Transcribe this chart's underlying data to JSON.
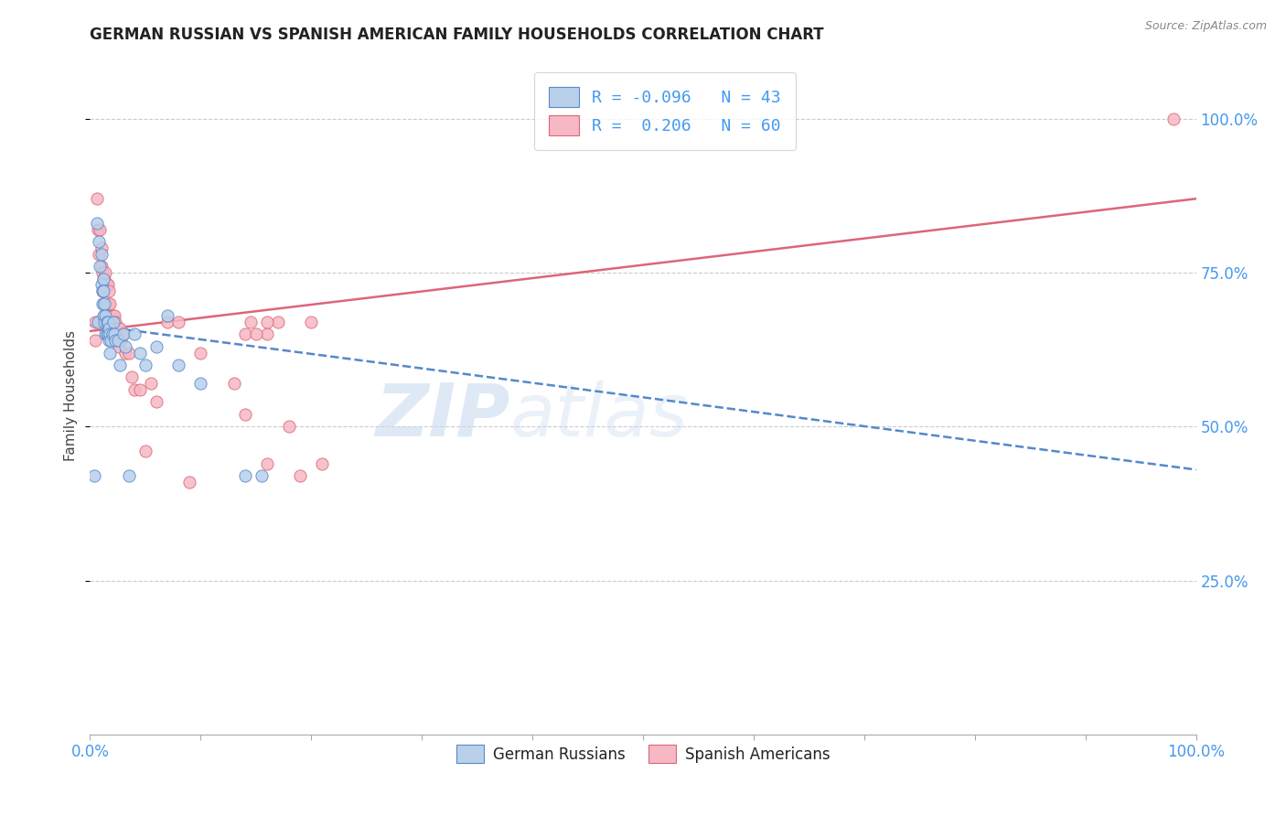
{
  "title": "GERMAN RUSSIAN VS SPANISH AMERICAN FAMILY HOUSEHOLDS CORRELATION CHART",
  "source": "Source: ZipAtlas.com",
  "ylabel": "Family Households",
  "watermark": "ZIPatlas",
  "legend_blue_R": "-0.096",
  "legend_blue_N": "43",
  "legend_pink_R": "0.206",
  "legend_pink_N": "60",
  "blue_color": "#b8d0ea",
  "pink_color": "#f5b8c4",
  "blue_line_color": "#5588cc",
  "pink_line_color": "#dd6677",
  "ytick_values": [
    0.25,
    0.5,
    0.75,
    1.0
  ],
  "ytick_labels": [
    "25.0%",
    "50.0%",
    "75.0%",
    "100.0%"
  ],
  "xlim": [
    0.0,
    1.0
  ],
  "ylim": [
    0.0,
    1.1
  ],
  "blue_line_x0": 0.0,
  "blue_line_x1": 1.0,
  "blue_line_y0": 0.665,
  "blue_line_y1": 0.43,
  "pink_line_x0": 0.0,
  "pink_line_x1": 1.0,
  "pink_line_y0": 0.655,
  "pink_line_y1": 0.87,
  "blue_scatter_x": [
    0.004,
    0.006,
    0.007,
    0.008,
    0.009,
    0.01,
    0.01,
    0.011,
    0.011,
    0.012,
    0.012,
    0.012,
    0.013,
    0.013,
    0.014,
    0.014,
    0.015,
    0.015,
    0.016,
    0.016,
    0.017,
    0.017,
    0.018,
    0.018,
    0.019,
    0.02,
    0.021,
    0.022,
    0.023,
    0.025,
    0.027,
    0.03,
    0.032,
    0.035,
    0.04,
    0.045,
    0.05,
    0.06,
    0.07,
    0.08,
    0.1,
    0.14,
    0.155
  ],
  "blue_scatter_y": [
    0.42,
    0.83,
    0.67,
    0.8,
    0.76,
    0.78,
    0.73,
    0.72,
    0.7,
    0.74,
    0.72,
    0.68,
    0.7,
    0.67,
    0.68,
    0.65,
    0.67,
    0.65,
    0.67,
    0.65,
    0.66,
    0.64,
    0.65,
    0.62,
    0.64,
    0.65,
    0.67,
    0.65,
    0.64,
    0.64,
    0.6,
    0.65,
    0.63,
    0.42,
    0.65,
    0.62,
    0.6,
    0.63,
    0.68,
    0.6,
    0.57,
    0.42,
    0.42
  ],
  "pink_scatter_x": [
    0.005,
    0.005,
    0.006,
    0.007,
    0.008,
    0.009,
    0.01,
    0.01,
    0.011,
    0.011,
    0.012,
    0.012,
    0.013,
    0.014,
    0.014,
    0.015,
    0.015,
    0.016,
    0.016,
    0.017,
    0.017,
    0.018,
    0.019,
    0.02,
    0.021,
    0.022,
    0.022,
    0.023,
    0.024,
    0.025,
    0.026,
    0.027,
    0.028,
    0.03,
    0.032,
    0.035,
    0.038,
    0.04,
    0.045,
    0.05,
    0.055,
    0.06,
    0.07,
    0.08,
    0.09,
    0.1,
    0.13,
    0.14,
    0.16,
    0.18,
    0.19,
    0.145,
    0.16,
    0.17,
    0.2,
    0.21,
    0.14,
    0.15,
    0.16,
    0.98
  ],
  "pink_scatter_y": [
    0.67,
    0.64,
    0.87,
    0.82,
    0.78,
    0.82,
    0.79,
    0.76,
    0.75,
    0.72,
    0.74,
    0.7,
    0.74,
    0.75,
    0.68,
    0.73,
    0.68,
    0.73,
    0.7,
    0.72,
    0.67,
    0.7,
    0.68,
    0.68,
    0.66,
    0.68,
    0.64,
    0.67,
    0.66,
    0.66,
    0.63,
    0.66,
    0.64,
    0.65,
    0.62,
    0.62,
    0.58,
    0.56,
    0.56,
    0.46,
    0.57,
    0.54,
    0.67,
    0.67,
    0.41,
    0.62,
    0.57,
    0.65,
    0.44,
    0.5,
    0.42,
    0.67,
    0.65,
    0.67,
    0.67,
    0.44,
    0.52,
    0.65,
    0.67,
    1.0
  ]
}
